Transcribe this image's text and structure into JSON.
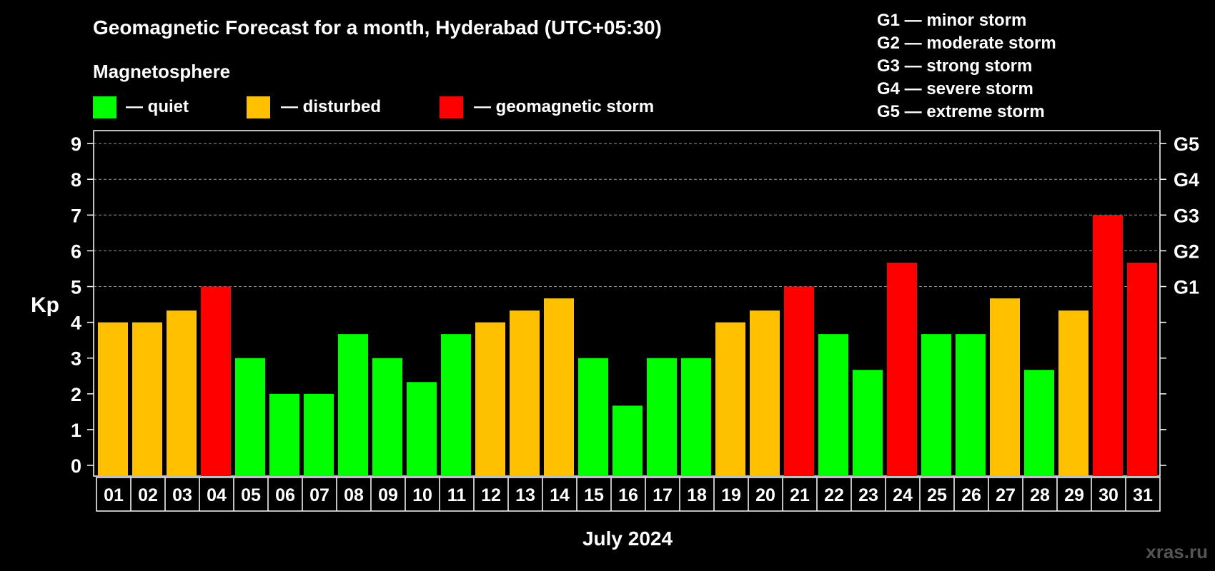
{
  "chart_data": {
    "type": "bar",
    "title": "Geomagnetic Forecast for a month, Hyderabad (UTC+05:30)",
    "subtitle": "Magnetosphere",
    "legend": [
      {
        "label": "— quiet",
        "color": "#00ff00"
      },
      {
        "label": "— disturbed",
        "color": "#ffc000"
      },
      {
        "label": "— geomagnetic storm",
        "color": "#ff0000"
      }
    ],
    "storm_scale": [
      "G1 — minor storm",
      "G2 — moderate storm",
      "G3 — strong storm",
      "G4 — severe storm",
      "G5 — extreme storm"
    ],
    "ylabel": "Kp",
    "xlabel": "July 2024",
    "ylim": [
      0,
      9
    ],
    "yticks": [
      "0",
      "1",
      "2",
      "3",
      "4",
      "5",
      "6",
      "7",
      "8",
      "9"
    ],
    "right_axis": [
      {
        "label": "G1",
        "kp": 5
      },
      {
        "label": "G2",
        "kp": 6
      },
      {
        "label": "G3",
        "kp": 7
      },
      {
        "label": "G4",
        "kp": 8
      },
      {
        "label": "G5",
        "kp": 9
      }
    ],
    "grid": "dashed at Kp 5–9",
    "categories": [
      "01",
      "02",
      "03",
      "04",
      "05",
      "06",
      "07",
      "08",
      "09",
      "10",
      "11",
      "12",
      "13",
      "14",
      "15",
      "16",
      "17",
      "18",
      "19",
      "20",
      "21",
      "22",
      "23",
      "24",
      "25",
      "26",
      "27",
      "28",
      "29",
      "30",
      "31"
    ],
    "values": [
      4,
      4,
      4.33,
      5,
      3,
      2,
      2,
      3.67,
      3,
      2.33,
      3.67,
      4,
      4.33,
      4.67,
      3,
      1.67,
      3,
      3,
      4,
      4.33,
      5,
      3.67,
      2.67,
      5.67,
      3.67,
      3.67,
      4.67,
      2.67,
      4.33,
      7,
      5.67
    ],
    "status": [
      "disturbed",
      "disturbed",
      "disturbed",
      "storm",
      "quiet",
      "quiet",
      "quiet",
      "quiet",
      "quiet",
      "quiet",
      "quiet",
      "disturbed",
      "disturbed",
      "disturbed",
      "quiet",
      "quiet",
      "quiet",
      "quiet",
      "disturbed",
      "disturbed",
      "storm",
      "quiet",
      "quiet",
      "storm",
      "quiet",
      "quiet",
      "disturbed",
      "quiet",
      "disturbed",
      "storm",
      "storm"
    ],
    "colors": {
      "quiet": "#00ff00",
      "disturbed": "#ffc000",
      "storm": "#ff0000"
    }
  },
  "watermark": "xras.ru"
}
